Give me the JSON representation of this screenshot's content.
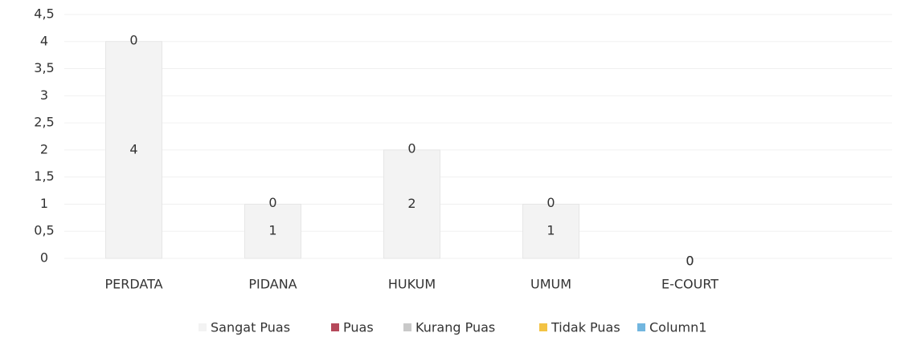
{
  "chart_data": {
    "type": "bar",
    "stacked": true,
    "categories": [
      "PERDATA",
      "PIDANA",
      "HUKUM",
      "UMUM",
      "E-COURT"
    ],
    "series": [
      {
        "name": "Sangat Puas",
        "color": "#f3f3f3",
        "values": [
          4,
          1,
          2,
          1,
          0
        ]
      },
      {
        "name": "Puas",
        "color": "#b5485a",
        "values": [
          0,
          0,
          0,
          0,
          0
        ]
      },
      {
        "name": "Kurang Puas",
        "color": "#c9c9c9",
        "values": [
          null,
          null,
          null,
          null,
          null
        ]
      },
      {
        "name": "Tidak Puas",
        "color": "#f3c344",
        "values": [
          null,
          null,
          null,
          null,
          null
        ]
      },
      {
        "name": "Column1",
        "color": "#72b6df",
        "values": [
          null,
          null,
          null,
          null,
          null
        ]
      }
    ],
    "ylim": [
      0,
      4.5
    ],
    "yticks": [
      0,
      {
        "value": 0.5,
        "label": "0,5"
      },
      1,
      {
        "value": 1.5,
        "label": "1,5"
      },
      2,
      {
        "value": 2.5,
        "label": "2,5"
      },
      3,
      {
        "value": 3.5,
        "label": "3,5"
      },
      4,
      {
        "value": 4.5,
        "label": "4,5"
      }
    ],
    "grid": true,
    "legend": "bottom"
  }
}
